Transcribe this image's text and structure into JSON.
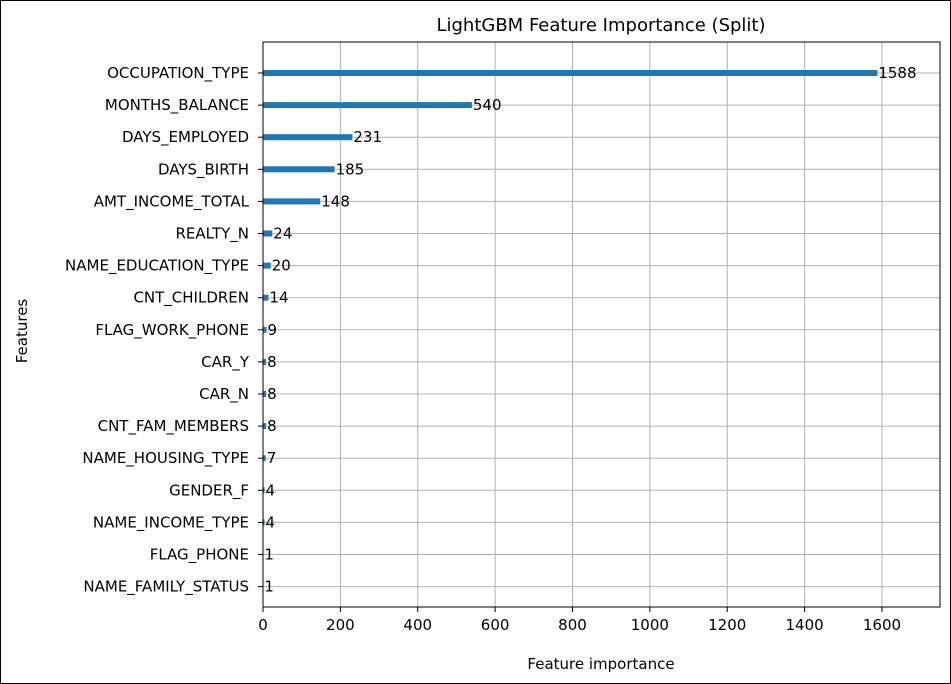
{
  "chart_data": {
    "type": "bar",
    "orientation": "horizontal",
    "title": "LightGBM Feature Importance (Split)",
    "xlabel": "Feature importance",
    "ylabel": "Features",
    "xlim": [
      0,
      1750
    ],
    "xticks": [
      "0",
      "200",
      "400",
      "600",
      "800",
      "1000",
      "1200",
      "1400",
      "1600"
    ],
    "grid": true,
    "bar_color": "#1f77b4",
    "categories": [
      "OCCUPATION_TYPE",
      "MONTHS_BALANCE",
      "DAYS_EMPLOYED",
      "DAYS_BIRTH",
      "AMT_INCOME_TOTAL",
      "REALTY_N",
      "NAME_EDUCATION_TYPE",
      "CNT_CHILDREN",
      "FLAG_WORK_PHONE",
      "CAR_Y",
      "CAR_N",
      "CNT_FAM_MEMBERS",
      "NAME_HOUSING_TYPE",
      "GENDER_F",
      "NAME_INCOME_TYPE",
      "FLAG_PHONE",
      "NAME_FAMILY_STATUS"
    ],
    "values": [
      1588,
      540,
      231,
      185,
      148,
      24,
      20,
      14,
      9,
      8,
      8,
      8,
      7,
      4,
      4,
      1,
      1
    ]
  }
}
